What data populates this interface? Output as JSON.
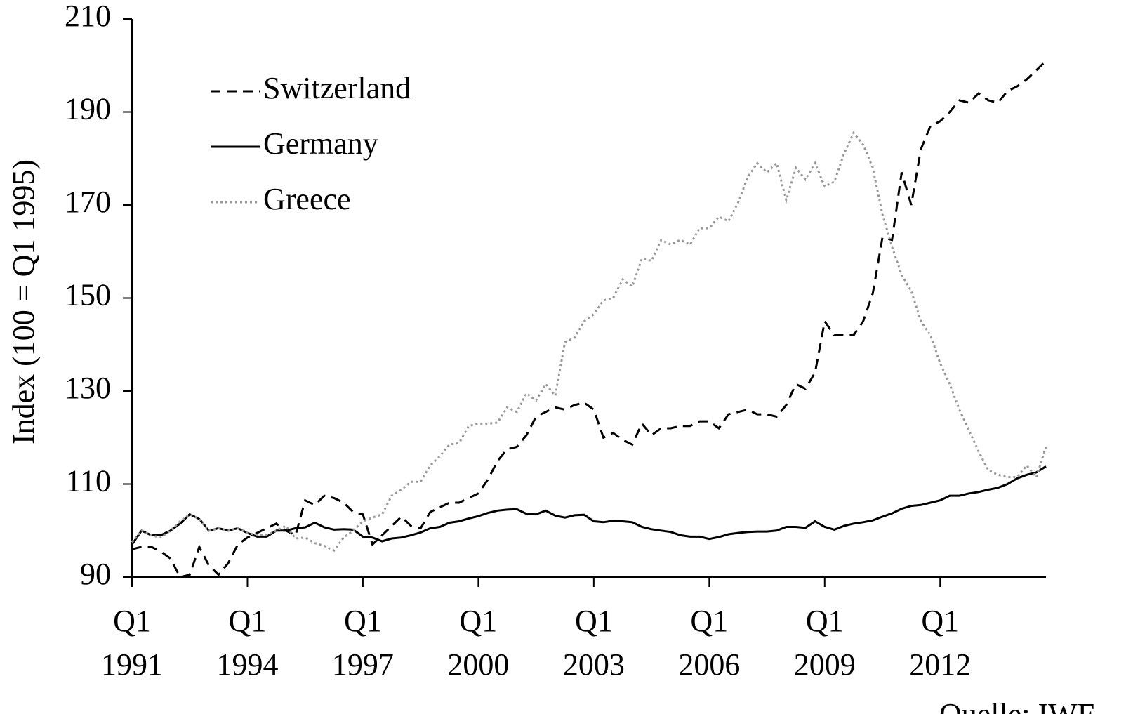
{
  "chart_data": {
    "type": "line",
    "y_label": "Index (100 = Q1 1995)",
    "source": "Quelle: IWF",
    "categories": [
      "Q1\n1991",
      null,
      null,
      null,
      null,
      null,
      null,
      null,
      null,
      null,
      null,
      null,
      "Q1\n1994",
      null,
      null,
      null,
      null,
      null,
      null,
      null,
      null,
      null,
      null,
      null,
      "Q1\n1997",
      null,
      null,
      null,
      null,
      null,
      null,
      null,
      null,
      null,
      null,
      null,
      "Q1\n2000",
      null,
      null,
      null,
      null,
      null,
      null,
      null,
      null,
      null,
      null,
      null,
      "Q1\n2003",
      null,
      null,
      null,
      null,
      null,
      null,
      null,
      null,
      null,
      null,
      null,
      "Q1\n2006",
      null,
      null,
      null,
      null,
      null,
      null,
      null,
      null,
      null,
      null,
      null,
      "Q1\n2009",
      null,
      null,
      null,
      null,
      null,
      null,
      null,
      null,
      null,
      null,
      null,
      "Q1\n2012",
      null,
      null,
      null,
      null,
      null,
      null,
      null,
      null,
      null,
      null,
      null
    ],
    "ylim": [
      90,
      210
    ],
    "yticks": [
      90,
      110,
      130,
      150,
      170,
      190,
      210
    ],
    "legend": "upper left",
    "series": [
      {
        "name": "Switzerland",
        "color": "#000000",
        "dash": "dashed",
        "values": [
          96,
          96.5,
          96.5,
          95.5,
          94,
          90,
          90.5,
          96.5,
          92.5,
          90.5,
          93,
          97,
          98.5,
          99.5,
          100.5,
          101.5,
          100,
          99,
          106.5,
          105.5,
          107.5,
          107,
          106,
          104,
          103.5,
          97,
          99,
          101,
          103,
          101,
          100.5,
          104,
          105,
          106,
          106,
          107,
          108,
          111,
          115,
          117.5,
          118,
          120.5,
          124.5,
          125.5,
          126.5,
          126,
          127,
          127.5,
          126,
          120,
          121,
          119.5,
          118.5,
          123,
          120.5,
          122,
          122,
          122.5,
          122.5,
          123.5,
          123.5,
          122,
          125,
          125.5,
          126,
          125,
          125,
          124.5,
          127,
          131.5,
          130.5,
          134,
          145,
          142,
          142,
          142,
          145,
          151,
          163,
          162.5,
          177,
          170,
          182,
          187,
          188,
          190,
          192.5,
          192,
          194,
          192.5,
          192,
          194.5,
          195.5,
          197,
          199,
          201
        ]
      },
      {
        "name": "Germany",
        "color": "#000000",
        "dash": "solid",
        "values": [
          97,
          100,
          99,
          99,
          100,
          101.5,
          103.5,
          102.5,
          100,
          100.5,
          100,
          100.5,
          99.5,
          98.7,
          98.7,
          100,
          100,
          100.5,
          100.7,
          101.7,
          100.7,
          100.2,
          100.3,
          100.2,
          98.7,
          98.5,
          97.7,
          98.3,
          98.5,
          99,
          99.6,
          100.5,
          100.8,
          101.7,
          102,
          102.6,
          103.1,
          103.8,
          104.3,
          104.5,
          104.6,
          103.6,
          103.5,
          104.3,
          103.2,
          102.8,
          103.3,
          103.4,
          102,
          101.8,
          102.1,
          102,
          101.8,
          100.8,
          100.3,
          100,
          99.7,
          99,
          98.7,
          98.7,
          98.2,
          98.6,
          99.2,
          99.5,
          99.7,
          99.8,
          99.8,
          100,
          100.8,
          100.8,
          100.6,
          102,
          100.8,
          100.2,
          101,
          101.5,
          101.8,
          102.2,
          103,
          103.7,
          104.7,
          105.3,
          105.5,
          106,
          106.5,
          107.5,
          107.5,
          108,
          108.3,
          108.8,
          109.2,
          110,
          111.2,
          112,
          112.5,
          113.8
        ]
      },
      {
        "name": "Greece",
        "color": "#999999",
        "dash": "dotted",
        "values": [
          97.5,
          100,
          99,
          98.5,
          100,
          102,
          103.5,
          102.5,
          100,
          100.5,
          100,
          100.5,
          99.5,
          99,
          99,
          100,
          101,
          98.3,
          98.5,
          97.3,
          96.7,
          95.7,
          98.5,
          100,
          102,
          102.8,
          103.5,
          107.5,
          108.8,
          110.5,
          110.5,
          114,
          116,
          118.5,
          118.8,
          122.5,
          123,
          123,
          123.2,
          126.5,
          125.5,
          129.5,
          128,
          131.5,
          129,
          140.5,
          141.5,
          145,
          146.5,
          149.5,
          150,
          154,
          152.5,
          158.5,
          158,
          162.5,
          161.5,
          162.5,
          161.5,
          165,
          165,
          167.5,
          166.5,
          170.5,
          176,
          179,
          177,
          179,
          171,
          178,
          175.5,
          179,
          174,
          175,
          181,
          185.5,
          183,
          178,
          168,
          161,
          155,
          151.5,
          145,
          142,
          136,
          131.5,
          126,
          121.5,
          117,
          113,
          112,
          111.5,
          111.5,
          114,
          111.5,
          118
        ]
      }
    ]
  }
}
